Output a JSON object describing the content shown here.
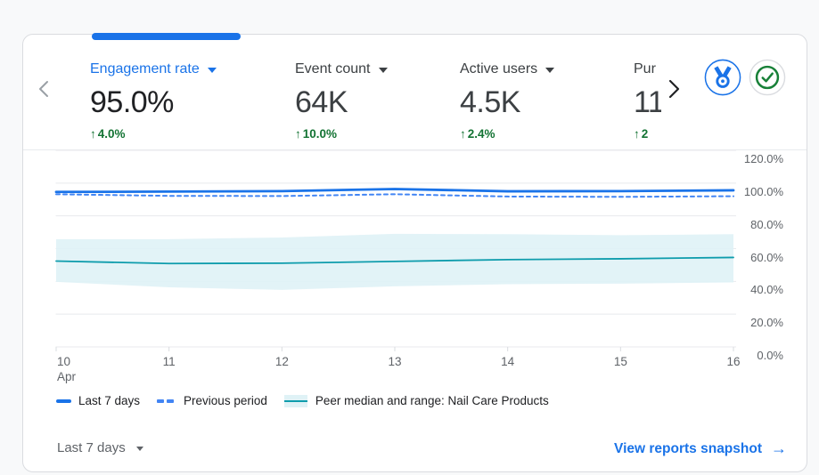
{
  "card": {
    "metrics": [
      {
        "label": "Engagement rate",
        "value": "95.0%",
        "delta_arrow": "↑",
        "delta": "4.0%",
        "selected": true
      },
      {
        "label": "Event count",
        "value": "64K",
        "delta_arrow": "↑",
        "delta": "10.0%",
        "selected": false
      },
      {
        "label": "Active users",
        "value": "4.5K",
        "delta_arrow": "↑",
        "delta": "2.4%",
        "selected": false
      },
      {
        "label": "Pur",
        "value": "11",
        "delta_arrow": "↑",
        "delta": "2",
        "selected": false,
        "truncated": true
      }
    ],
    "badges": [
      {
        "name": "benchmarking-medal",
        "color": "#1a73e8"
      },
      {
        "name": "status-check",
        "color": "#188038"
      }
    ],
    "legend": [
      {
        "label": "Last 7 days",
        "swatch": "solid-line",
        "color": "#1a73e8"
      },
      {
        "label": "Previous period",
        "swatch": "dashed-line",
        "color": "#4285f4"
      },
      {
        "label": "Peer median and range: Nail Care Products",
        "swatch": "band",
        "line_color": "#0e9cac",
        "band_color": "#dff2f6"
      }
    ],
    "footer": {
      "date_range": "Last 7 days",
      "link_label": "View reports snapshot",
      "link_arrow": "→"
    }
  },
  "chart_data": {
    "type": "line",
    "x": [
      "Apr 10",
      "Apr 11",
      "Apr 12",
      "Apr 13",
      "Apr 14",
      "Apr 15",
      "Apr 16"
    ],
    "x_tick_labels": [
      {
        "day": "10",
        "month": "Apr"
      },
      {
        "day": "11"
      },
      {
        "day": "12"
      },
      {
        "day": "13"
      },
      {
        "day": "14"
      },
      {
        "day": "15"
      },
      {
        "day": "16"
      }
    ],
    "ylabel": "Engagement rate (%)",
    "ylim": [
      0,
      120
    ],
    "yticks": [
      0,
      20,
      40,
      60,
      80,
      100,
      120
    ],
    "ytick_labels": [
      "0.0%",
      "20.0%",
      "40.0%",
      "60.0%",
      "80.0%",
      "100.0%",
      "120.0%"
    ],
    "grid": true,
    "legend_position": "bottom",
    "series": [
      {
        "name": "Last 7 days",
        "style": "solid",
        "color": "#1a73e8",
        "values": [
          94.6,
          94.8,
          95.1,
          96.4,
          95.0,
          95.1,
          95.6
        ]
      },
      {
        "name": "Previous period",
        "style": "dashed",
        "color": "#4285f4",
        "values": [
          93.2,
          92.2,
          92.1,
          93.2,
          91.8,
          91.6,
          92.0
        ]
      },
      {
        "name": "Peer median and range: Nail Care Products",
        "style": "band",
        "color": "#0e9cac",
        "band_color": "#dff2f6",
        "median": [
          52.4,
          50.9,
          51.1,
          52.2,
          53.3,
          53.8,
          54.6
        ],
        "band_high": [
          65.8,
          65.8,
          66.8,
          69.0,
          68.8,
          68.2,
          68.8
        ],
        "band_low": [
          39.7,
          36.4,
          34.8,
          37.0,
          38.3,
          38.6,
          39.4
        ]
      }
    ]
  }
}
